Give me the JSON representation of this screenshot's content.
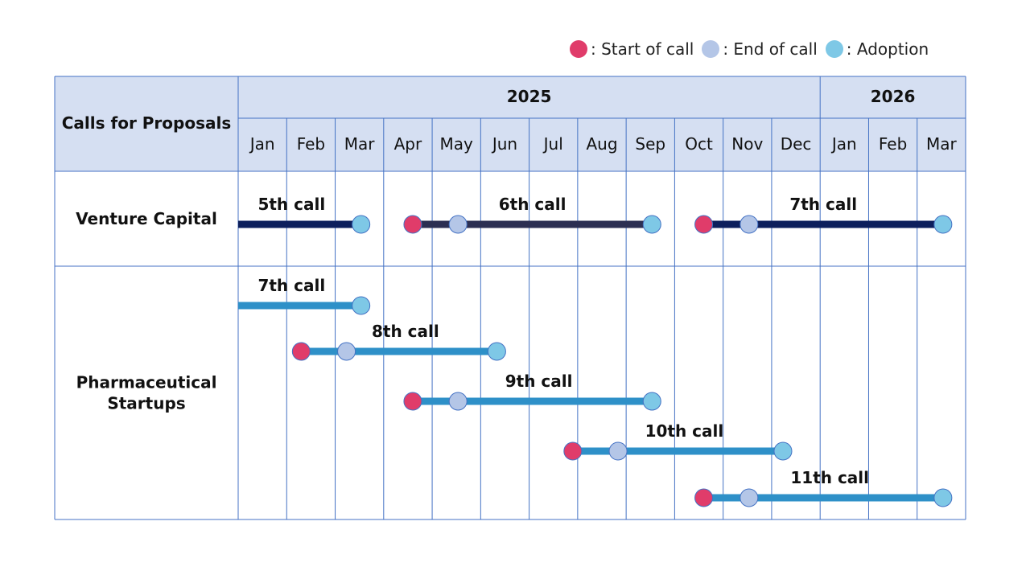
{
  "legend": {
    "start": {
      "label": ": Start of call",
      "color": "#e03c6a"
    },
    "end": {
      "label": ": End of call",
      "color": "#b4c6e7"
    },
    "adoption": {
      "label": ": Adoption",
      "color": "#7ec8e6"
    }
  },
  "table": {
    "header_label": "Calls for Proposals",
    "years": [
      {
        "label": "2025",
        "months": 12
      },
      {
        "label": "2026",
        "months": 3
      }
    ],
    "months": [
      "Jan",
      "Feb",
      "Mar",
      "Apr",
      "May",
      "Jun",
      "Jul",
      "Aug",
      "Sep",
      "Oct",
      "Nov",
      "Dec",
      "Jan",
      "Feb",
      "Mar"
    ],
    "colors": {
      "header_bg": "#d5dff2",
      "grid": "#4472c4",
      "vc_bar": "#0d1f5c",
      "vc_bar_alt": "#2c2f52",
      "pharma_bar": "#2e90c8"
    }
  },
  "rows": [
    {
      "label": [
        "Venture Capital"
      ],
      "bar_color": "#0d1f5c",
      "calls": [
        {
          "name": "5th call",
          "start": null,
          "end": null,
          "adoption": 3,
          "bar_from": 0.0
        },
        {
          "name": "6th call",
          "start": 4,
          "end": 5,
          "adoption": 9,
          "bar_color": "#2c2f52"
        },
        {
          "name": "7th call",
          "start": 10,
          "end": 11,
          "adoption": 15
        }
      ]
    },
    {
      "label": [
        "Pharmaceutical",
        "Startups"
      ],
      "bar_color": "#2e90c8",
      "calls": [
        {
          "name": "7th call",
          "start": null,
          "end": null,
          "adoption": 3,
          "bar_from": 0.0
        },
        {
          "name": "8th call",
          "start": 1.7,
          "end": 2.7,
          "adoption": 5.8
        },
        {
          "name": "9th call",
          "start": 4,
          "end": 5,
          "adoption": 9
        },
        {
          "name": "10th call",
          "start": 7.3,
          "end": 8.3,
          "adoption": 11.7
        },
        {
          "name": "11th call",
          "start": 10,
          "end": 11,
          "adoption": 15
        }
      ]
    }
  ]
}
